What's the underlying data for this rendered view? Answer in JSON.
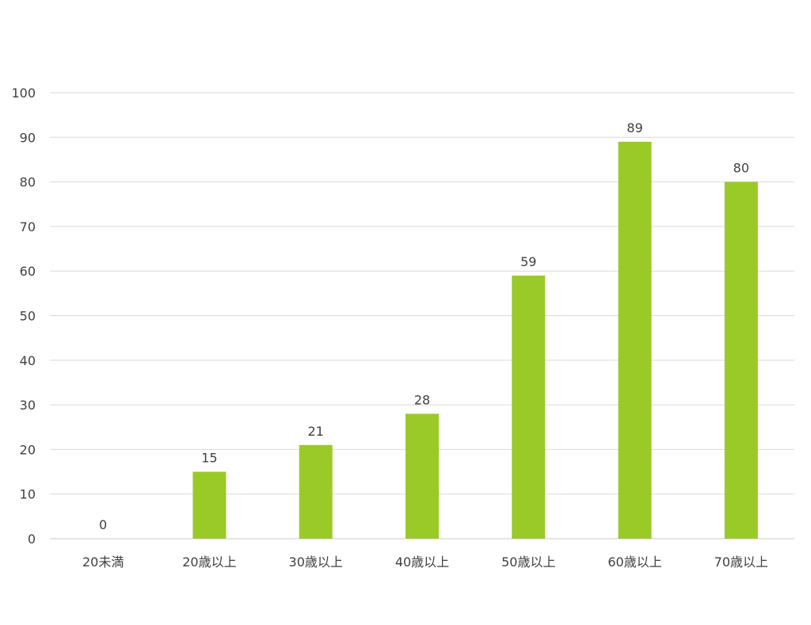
{
  "chart_data": {
    "type": "bar",
    "title": "",
    "xlabel": "",
    "ylabel": "",
    "categories": [
      "20未満",
      "20歳以上",
      "30歳以上",
      "40歳以上",
      "50歳以上",
      "60歳以上",
      "70歳以上"
    ],
    "values": [
      0,
      15,
      21,
      28,
      59,
      89,
      80
    ],
    "ylim": [
      0,
      100
    ],
    "yticks": [
      0,
      10,
      20,
      30,
      40,
      50,
      60,
      70,
      80,
      90,
      100
    ],
    "data_labels": true,
    "grid": true,
    "legend": "none",
    "bar_color": "#9ACA27",
    "text_color": "#404040",
    "grid_color": "#D9D9D9"
  }
}
